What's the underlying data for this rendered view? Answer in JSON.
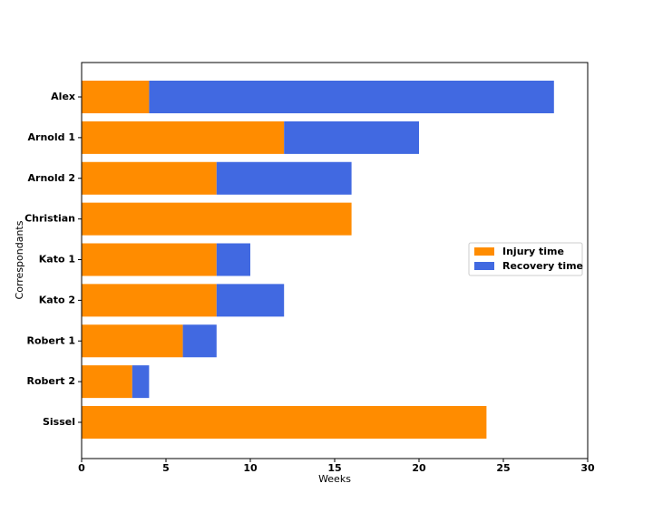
{
  "chart_data": {
    "type": "bar",
    "orientation": "horizontal",
    "stacked": true,
    "x_label": "Weeks",
    "y_label": "Correspondants",
    "categories": [
      "Alex",
      "Arnold 1",
      "Arnold 2",
      "Christian",
      "Kato 1",
      "Kato 2",
      "Robert 1",
      "Robert 2",
      "Sissel"
    ],
    "series": [
      {
        "name": "Injury time",
        "color": "#ff8c00",
        "values": [
          4,
          12,
          8,
          16,
          8,
          8,
          6,
          3,
          24
        ]
      },
      {
        "name": "Recovery time",
        "color": "#4169e1",
        "values": [
          24,
          8,
          8,
          0,
          2,
          4,
          2,
          1,
          0
        ]
      }
    ],
    "xlim": [
      0,
      30
    ],
    "xticks": [
      0,
      5,
      10,
      15,
      20,
      25,
      30
    ],
    "legend": "center right"
  }
}
